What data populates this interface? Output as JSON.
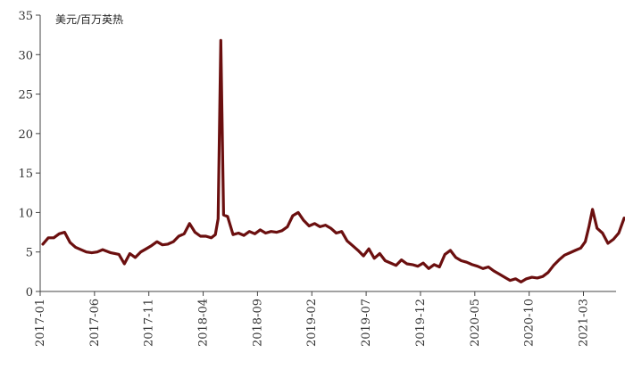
{
  "chart_data": {
    "type": "line",
    "unit_label": "美元/百万英热",
    "ylim": [
      0,
      35
    ],
    "y_ticks": [
      0,
      5,
      10,
      15,
      20,
      25,
      30,
      35
    ],
    "x_tick_labels": [
      "2017-01",
      "2017-06",
      "2017-11",
      "2018-04",
      "2018-09",
      "2019-02",
      "2019-07",
      "2019-12",
      "2020-05",
      "2020-10",
      "2021-03"
    ],
    "xlim": [
      "2017-01",
      "2021-06"
    ],
    "grid": false,
    "legend": "none",
    "series": [
      {
        "color": "#6b0f0f",
        "points": [
          [
            "2017-01",
            6.0
          ],
          [
            "2017-01",
            6.8
          ],
          [
            "2017-02",
            6.8
          ],
          [
            "2017-02",
            7.3
          ],
          [
            "2017-03",
            7.5
          ],
          [
            "2017-03",
            6.2
          ],
          [
            "2017-04",
            5.6
          ],
          [
            "2017-04",
            5.3
          ],
          [
            "2017-05",
            5.0
          ],
          [
            "2017-05",
            4.9
          ],
          [
            "2017-06",
            5.0
          ],
          [
            "2017-06",
            5.3
          ],
          [
            "2017-07",
            4.9
          ],
          [
            "2017-08",
            4.7
          ],
          [
            "2017-08",
            3.5
          ],
          [
            "2017-09",
            4.8
          ],
          [
            "2017-09",
            4.3
          ],
          [
            "2017-10",
            5.0
          ],
          [
            "2017-10",
            5.4
          ],
          [
            "2017-11",
            5.8
          ],
          [
            "2017-11",
            6.3
          ],
          [
            "2017-12",
            5.9
          ],
          [
            "2017-12",
            6.0
          ],
          [
            "2018-01",
            6.3
          ],
          [
            "2018-01",
            7.0
          ],
          [
            "2018-02",
            7.3
          ],
          [
            "2018-02",
            8.6
          ],
          [
            "2018-03",
            7.5
          ],
          [
            "2018-03",
            7.0
          ],
          [
            "2018-04",
            7.0
          ],
          [
            "2018-04",
            6.8
          ],
          [
            "2018-05",
            7.2
          ],
          [
            "2018-05",
            9.2
          ],
          [
            "2018-05",
            31.8
          ],
          [
            "2018-05",
            9.7
          ],
          [
            "2018-06",
            9.5
          ],
          [
            "2018-06",
            7.2
          ],
          [
            "2018-07",
            7.4
          ],
          [
            "2018-07",
            7.1
          ],
          [
            "2018-08",
            7.6
          ],
          [
            "2018-08",
            7.3
          ],
          [
            "2018-09",
            7.8
          ],
          [
            "2018-09",
            7.4
          ],
          [
            "2018-10",
            7.6
          ],
          [
            "2018-10",
            7.5
          ],
          [
            "2018-11",
            7.7
          ],
          [
            "2018-11",
            8.2
          ],
          [
            "2018-12",
            9.6
          ],
          [
            "2018-12",
            10.0
          ],
          [
            "2019-01",
            9.0
          ],
          [
            "2019-01",
            8.3
          ],
          [
            "2019-02",
            8.6
          ],
          [
            "2019-02",
            8.2
          ],
          [
            "2019-03",
            8.4
          ],
          [
            "2019-03",
            8.0
          ],
          [
            "2019-04",
            7.4
          ],
          [
            "2019-04",
            7.6
          ],
          [
            "2019-05",
            6.4
          ],
          [
            "2019-05",
            5.8
          ],
          [
            "2019-06",
            5.2
          ],
          [
            "2019-06",
            4.5
          ],
          [
            "2019-07",
            5.4
          ],
          [
            "2019-07",
            4.2
          ],
          [
            "2019-08",
            4.8
          ],
          [
            "2019-08",
            3.9
          ],
          [
            "2019-09",
            3.6
          ],
          [
            "2019-09",
            3.3
          ],
          [
            "2019-10",
            4.0
          ],
          [
            "2019-10",
            3.5
          ],
          [
            "2019-11",
            3.4
          ],
          [
            "2019-11",
            3.2
          ],
          [
            "2019-12",
            3.6
          ],
          [
            "2019-12",
            2.9
          ],
          [
            "2020-01",
            3.4
          ],
          [
            "2020-01",
            3.1
          ],
          [
            "2020-02",
            4.7
          ],
          [
            "2020-02",
            5.2
          ],
          [
            "2020-03",
            4.3
          ],
          [
            "2020-03",
            3.9
          ],
          [
            "2020-04",
            3.7
          ],
          [
            "2020-04",
            3.4
          ],
          [
            "2020-05",
            3.2
          ],
          [
            "2020-05",
            2.9
          ],
          [
            "2020-06",
            3.1
          ],
          [
            "2020-06",
            2.6
          ],
          [
            "2020-07",
            2.2
          ],
          [
            "2020-07",
            1.8
          ],
          [
            "2020-08",
            1.4
          ],
          [
            "2020-08",
            1.6
          ],
          [
            "2020-09",
            1.2
          ],
          [
            "2020-09",
            1.6
          ],
          [
            "2020-10",
            1.8
          ],
          [
            "2020-10",
            1.7
          ],
          [
            "2020-11",
            1.9
          ],
          [
            "2020-11",
            2.4
          ],
          [
            "2020-12",
            3.3
          ],
          [
            "2020-12",
            4.0
          ],
          [
            "2021-01",
            4.6
          ],
          [
            "2021-01",
            4.9
          ],
          [
            "2021-02",
            5.2
          ],
          [
            "2021-02",
            5.5
          ],
          [
            "2021-03",
            6.3
          ],
          [
            "2021-03",
            8.2
          ],
          [
            "2021-03",
            10.4
          ],
          [
            "2021-04",
            8.0
          ],
          [
            "2021-04",
            7.4
          ],
          [
            "2021-05",
            6.1
          ],
          [
            "2021-05",
            6.6
          ],
          [
            "2021-06",
            7.4
          ],
          [
            "2021-06",
            9.3
          ]
        ]
      }
    ]
  }
}
